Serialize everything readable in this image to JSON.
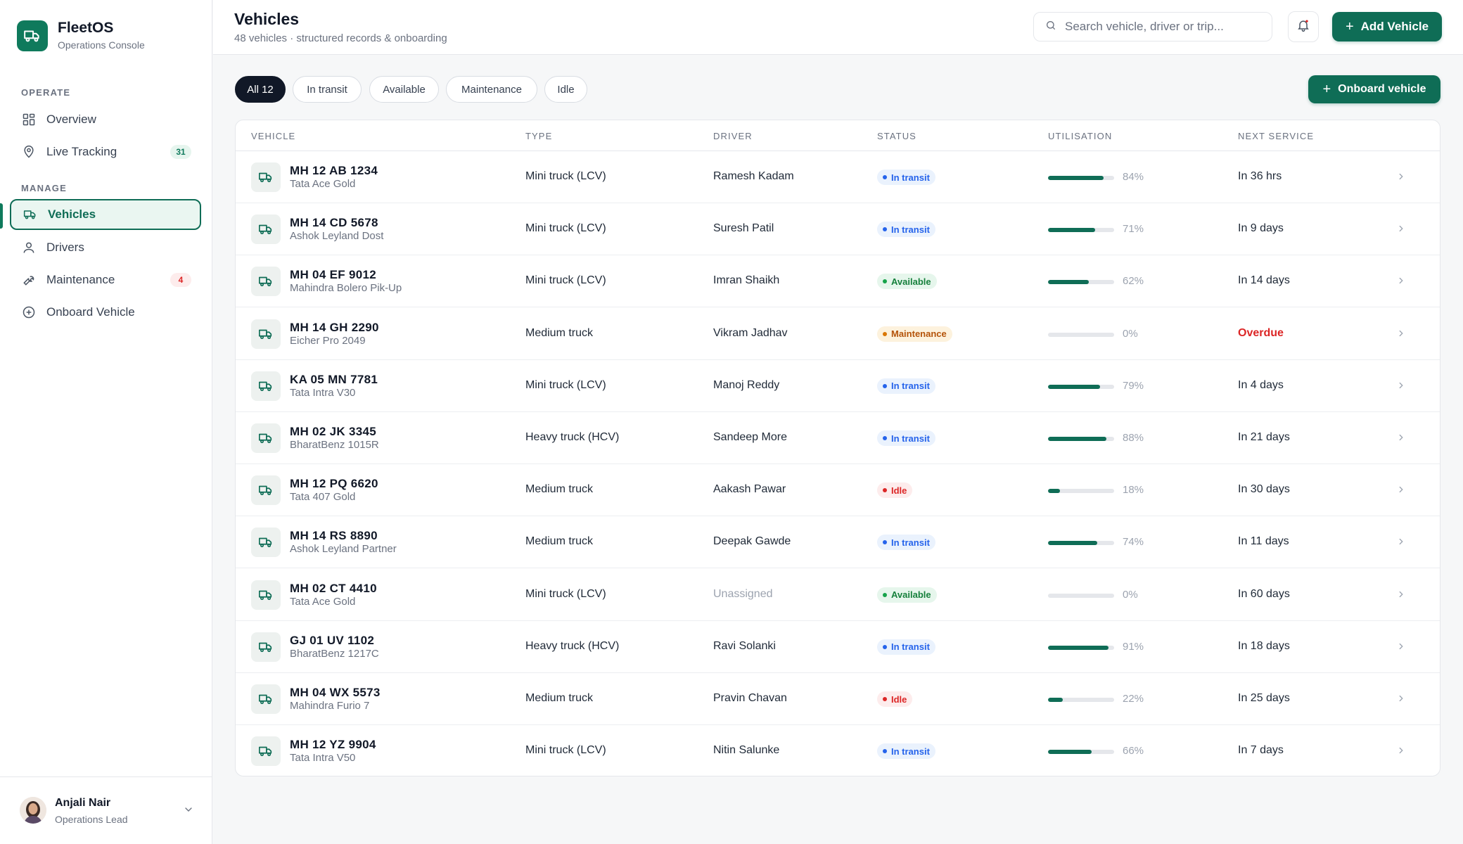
{
  "brand": {
    "name": "FleetOS",
    "subtitle": "Operations Console"
  },
  "sidebar": {
    "sections": [
      {
        "title": "OPERATE"
      },
      {
        "title": "MANAGE"
      }
    ],
    "items": [
      {
        "label": "Overview",
        "icon": "grid-icon"
      },
      {
        "label": "Live Tracking",
        "icon": "map-pin-icon",
        "badge": "31"
      },
      {
        "label": "Vehicles",
        "icon": "truck-icon",
        "active": true
      },
      {
        "label": "Drivers",
        "icon": "user-icon"
      },
      {
        "label": "Maintenance",
        "icon": "wrench-icon",
        "badge": "4"
      },
      {
        "label": "Onboard Vehicle",
        "icon": "plus-circle-icon"
      }
    ]
  },
  "user": {
    "name": "Anjali Nair",
    "role": "Operations Lead"
  },
  "header": {
    "title": "Vehicles",
    "subtitle": "48 vehicles · structured records & onboarding",
    "search_placeholder": "Search vehicle, driver or trip...",
    "add_label": "Add Vehicle"
  },
  "filters": [
    "All 12",
    "In transit",
    "Available",
    "Maintenance",
    "Idle"
  ],
  "onboard_label": "Onboard vehicle",
  "table": {
    "columns": [
      "VEHICLE",
      "TYPE",
      "DRIVER",
      "STATUS",
      "UTILISATION",
      "NEXT SERVICE"
    ],
    "rows": [
      {
        "plate": "MH 12 AB 1234",
        "model": "Tata Ace Gold",
        "type": "Mini truck (LCV)",
        "driver": "Ramesh Kadam",
        "status": "In transit",
        "utilisation": 84,
        "utilisation_label": "84%",
        "next_service": "In 36 hrs"
      },
      {
        "plate": "MH 14 CD 5678",
        "model": "Ashok Leyland Dost",
        "type": "Mini truck (LCV)",
        "driver": "Suresh Patil",
        "status": "In transit",
        "utilisation": 71,
        "utilisation_label": "71%",
        "next_service": "In 9 days"
      },
      {
        "plate": "MH 04 EF 9012",
        "model": "Mahindra Bolero Pik-Up",
        "type": "Mini truck (LCV)",
        "driver": "Imran Shaikh",
        "status": "Available",
        "utilisation": 62,
        "utilisation_label": "62%",
        "next_service": "In 14 days"
      },
      {
        "plate": "MH 14 GH 2290",
        "model": "Eicher Pro 2049",
        "type": "Medium truck",
        "driver": "Vikram Jadhav",
        "status": "Maintenance",
        "utilisation": 0,
        "utilisation_label": "0%",
        "next_service": "Overdue"
      },
      {
        "plate": "KA 05 MN 7781",
        "model": "Tata Intra V30",
        "type": "Mini truck (LCV)",
        "driver": "Manoj Reddy",
        "status": "In transit",
        "utilisation": 79,
        "utilisation_label": "79%",
        "next_service": "In 4 days"
      },
      {
        "plate": "MH 02 JK 3345",
        "model": "BharatBenz 1015R",
        "type": "Heavy truck (HCV)",
        "driver": "Sandeep More",
        "status": "In transit",
        "utilisation": 88,
        "utilisation_label": "88%",
        "next_service": "In 21 days"
      },
      {
        "plate": "MH 12 PQ 6620",
        "model": "Tata 407 Gold",
        "type": "Medium truck",
        "driver": "Aakash Pawar",
        "status": "Idle",
        "utilisation": 18,
        "utilisation_label": "18%",
        "next_service": "In 30 days"
      },
      {
        "plate": "MH 14 RS 8890",
        "model": "Ashok Leyland Partner",
        "type": "Medium truck",
        "driver": "Deepak Gawde",
        "status": "In transit",
        "utilisation": 74,
        "utilisation_label": "74%",
        "next_service": "In 11 days"
      },
      {
        "plate": "MH 02 CT 4410",
        "model": "Tata Ace Gold",
        "type": "Mini truck (LCV)",
        "driver": "Unassigned",
        "status": "Available",
        "utilisation": 0,
        "utilisation_label": "0%",
        "next_service": "In 60 days"
      },
      {
        "plate": "GJ 01 UV 1102",
        "model": "BharatBenz 1217C",
        "type": "Heavy truck (HCV)",
        "driver": "Ravi Solanki",
        "status": "In transit",
        "utilisation": 91,
        "utilisation_label": "91%",
        "next_service": "In 18 days"
      },
      {
        "plate": "MH 04 WX 5573",
        "model": "Mahindra Furio 7",
        "type": "Medium truck",
        "driver": "Pravin Chavan",
        "status": "Idle",
        "utilisation": 22,
        "utilisation_label": "22%",
        "next_service": "In 25 days"
      },
      {
        "plate": "MH 12 YZ 9904",
        "model": "Tata Intra V50",
        "type": "Mini truck (LCV)",
        "driver": "Nitin Salunke",
        "status": "In transit",
        "utilisation": 66,
        "utilisation_label": "66%",
        "next_service": "In 7 days"
      }
    ]
  },
  "colors": {
    "accent": "#0f6d56",
    "transit": "#2563eb",
    "available": "#16a34a",
    "maintenance": "#d97706",
    "idle": "#dc2626"
  }
}
